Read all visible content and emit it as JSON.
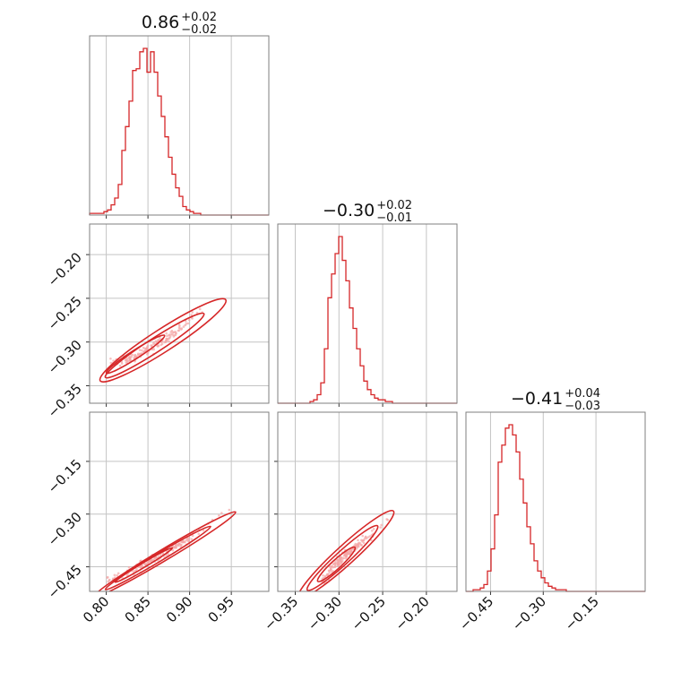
{
  "colors": {
    "line": "#d62728",
    "scatter": "#f4a6a6",
    "contour": "#d62728",
    "grid": "#c4c4c4",
    "frame": "#7f7f7f"
  },
  "chart_data": {
    "type": "corner",
    "parameters": [
      {
        "range": [
          0.78,
          0.995
        ],
        "ticks": [
          0.8,
          0.85,
          0.9,
          0.95
        ],
        "tick_labels": [
          "0.80",
          "0.85",
          "0.90",
          "0.95"
        ],
        "title": {
          "median": "0.86",
          "upper": "+0.02",
          "lower": "−0.02"
        }
      },
      {
        "range": [
          -0.37,
          -0.165
        ],
        "ticks": [
          -0.35,
          -0.3,
          -0.25,
          -0.2
        ],
        "tick_labels": [
          "−0.35",
          "−0.30",
          "−0.25",
          "−0.20"
        ],
        "title": {
          "median": "−0.30",
          "upper": "+0.02",
          "lower": "−0.01"
        }
      },
      {
        "range": [
          -0.52,
          -0.01
        ],
        "ticks": [
          -0.45,
          -0.3,
          -0.15
        ],
        "tick_labels": [
          "−0.45",
          "−0.30",
          "−0.15"
        ],
        "title": {
          "median": "−0.41",
          "upper": "+0.04",
          "lower": "−0.03"
        }
      }
    ],
    "histograms": [
      {
        "param": 0,
        "bins": 50,
        "counts": [
          1,
          1,
          1,
          1,
          2,
          3,
          6,
          10,
          18,
          38,
          52,
          67,
          85,
          86,
          96,
          98,
          84,
          96,
          84,
          70,
          58,
          46,
          34,
          24,
          16,
          11,
          5,
          3,
          2,
          1,
          1,
          0,
          0,
          0,
          0,
          0,
          0,
          0,
          0,
          0,
          0,
          0,
          0,
          0,
          0,
          0,
          0,
          0,
          0,
          0
        ]
      },
      {
        "param": 1,
        "bins": 50,
        "counts": [
          0,
          0,
          0,
          0,
          0,
          0,
          0,
          0,
          0,
          1,
          2,
          5,
          12,
          32,
          62,
          76,
          88,
          98,
          84,
          72,
          56,
          44,
          32,
          22,
          13,
          8,
          5,
          3,
          2,
          2,
          1,
          1,
          0,
          0,
          0,
          0,
          0,
          0,
          0,
          0,
          0,
          0,
          0,
          0,
          0,
          0,
          0,
          0,
          0,
          0
        ]
      },
      {
        "param": 2,
        "bins": 50,
        "counts": [
          0,
          0,
          1,
          1,
          2,
          4,
          12,
          25,
          45,
          76,
          86,
          96,
          98,
          92,
          82,
          66,
          52,
          38,
          28,
          18,
          12,
          8,
          5,
          3,
          2,
          1,
          1,
          1,
          0,
          0,
          0,
          0,
          0,
          0,
          0,
          0,
          0,
          0,
          0,
          0,
          0,
          0,
          0,
          0,
          0,
          0,
          0,
          0,
          0,
          0
        ]
      }
    ],
    "pairs": [
      {
        "x_param": 0,
        "y_param": 1,
        "ridge": [
          [
            0.805,
            -0.323
          ],
          [
            0.815,
            -0.324
          ],
          [
            0.825,
            -0.32
          ],
          [
            0.835,
            -0.316
          ],
          [
            0.845,
            -0.311
          ],
          [
            0.855,
            -0.306
          ],
          [
            0.865,
            -0.3
          ],
          [
            0.875,
            -0.294
          ],
          [
            0.885,
            -0.287
          ],
          [
            0.895,
            -0.279
          ],
          [
            0.905,
            -0.27
          ],
          [
            0.915,
            -0.261
          ],
          [
            0.925,
            -0.251
          ],
          [
            0.935,
            -0.243
          ]
        ],
        "contour_levels": [
          [
            0.835,
            -0.314,
            0.026,
            0.003
          ],
          [
            0.858,
            -0.304,
            0.044,
            0.005
          ],
          [
            0.868,
            -0.298,
            0.056,
            0.008
          ]
        ]
      },
      {
        "x_param": 0,
        "y_param": 2,
        "ridge": [
          [
            0.8,
            -0.495
          ],
          [
            0.815,
            -0.478
          ],
          [
            0.83,
            -0.46
          ],
          [
            0.845,
            -0.443
          ],
          [
            0.86,
            -0.425
          ],
          [
            0.875,
            -0.405
          ],
          [
            0.89,
            -0.383
          ],
          [
            0.905,
            -0.36
          ],
          [
            0.92,
            -0.335
          ],
          [
            0.935,
            -0.31
          ],
          [
            0.948,
            -0.285
          ]
        ],
        "contour_levels": [
          [
            0.845,
            -0.445,
            0.025,
            0.004
          ],
          [
            0.862,
            -0.425,
            0.046,
            0.007
          ],
          [
            0.87,
            -0.415,
            0.062,
            0.01
          ]
        ]
      },
      {
        "x_param": 1,
        "y_param": 2,
        "ridge": [
          [
            -0.32,
            -0.5
          ],
          [
            -0.314,
            -0.475
          ],
          [
            -0.306,
            -0.45
          ],
          [
            -0.298,
            -0.43
          ],
          [
            -0.29,
            -0.412
          ],
          [
            -0.28,
            -0.392
          ],
          [
            -0.27,
            -0.372
          ],
          [
            -0.258,
            -0.35
          ],
          [
            -0.245,
            -0.325
          ],
          [
            -0.232,
            -0.3
          ]
        ],
        "contour_levels": [
          [
            -0.303,
            -0.443,
            0.018,
            0.008
          ],
          [
            -0.296,
            -0.425,
            0.034,
            0.012
          ],
          [
            -0.292,
            -0.415,
            0.046,
            0.017
          ]
        ]
      }
    ]
  }
}
